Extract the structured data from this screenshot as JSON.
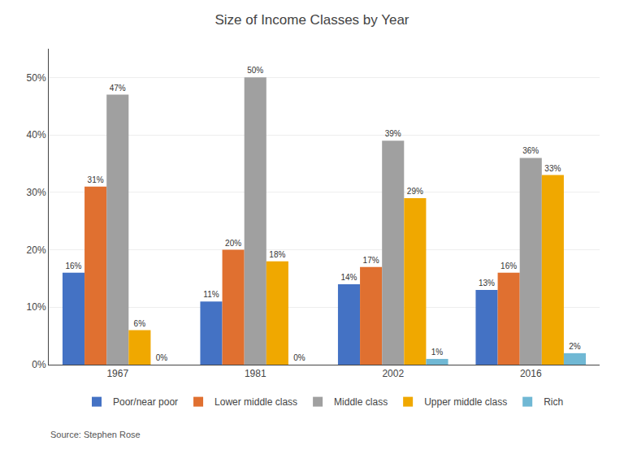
{
  "chart_data": {
    "type": "bar",
    "title": "Size of Income Classes by Year",
    "categories": [
      "1967",
      "1981",
      "2002",
      "2016"
    ],
    "series": [
      {
        "name": "Poor/near poor",
        "color": "#4472C4",
        "values": [
          16,
          11,
          14,
          13
        ],
        "value_labels": [
          "16%",
          "11%",
          "14%",
          "13%"
        ]
      },
      {
        "name": "Lower middle class",
        "color": "#E07030",
        "values": [
          31,
          20,
          17,
          16
        ],
        "value_labels": [
          "31%",
          "20%",
          "17%",
          "16%"
        ]
      },
      {
        "name": "Middle class",
        "color": "#A0A0A0",
        "values": [
          47,
          50,
          39,
          36
        ],
        "value_labels": [
          "47%",
          "50%",
          "39%",
          "36%"
        ]
      },
      {
        "name": "Upper middle class",
        "color": "#F0A800",
        "values": [
          6,
          18,
          29,
          33
        ],
        "value_labels": [
          "6%",
          "18%",
          "29%",
          "33%"
        ]
      },
      {
        "name": "Rich",
        "color": "#70B8D4",
        "values": [
          0,
          0,
          1,
          2
        ],
        "value_labels": [
          "0%",
          "0%",
          "1%",
          "2%"
        ]
      }
    ],
    "ylim": [
      0,
      55
    ],
    "yticks": [
      {
        "value": 0,
        "label": "0%"
      },
      {
        "value": 10,
        "label": "10%"
      },
      {
        "value": 20,
        "label": "20%"
      },
      {
        "value": 30,
        "label": "30%"
      },
      {
        "value": 40,
        "label": "40%"
      },
      {
        "value": 50,
        "label": "50%"
      }
    ],
    "grid": true,
    "legend": "bottom",
    "data_labels": true,
    "annotations": [
      "Source: Stephen Rose"
    ]
  }
}
